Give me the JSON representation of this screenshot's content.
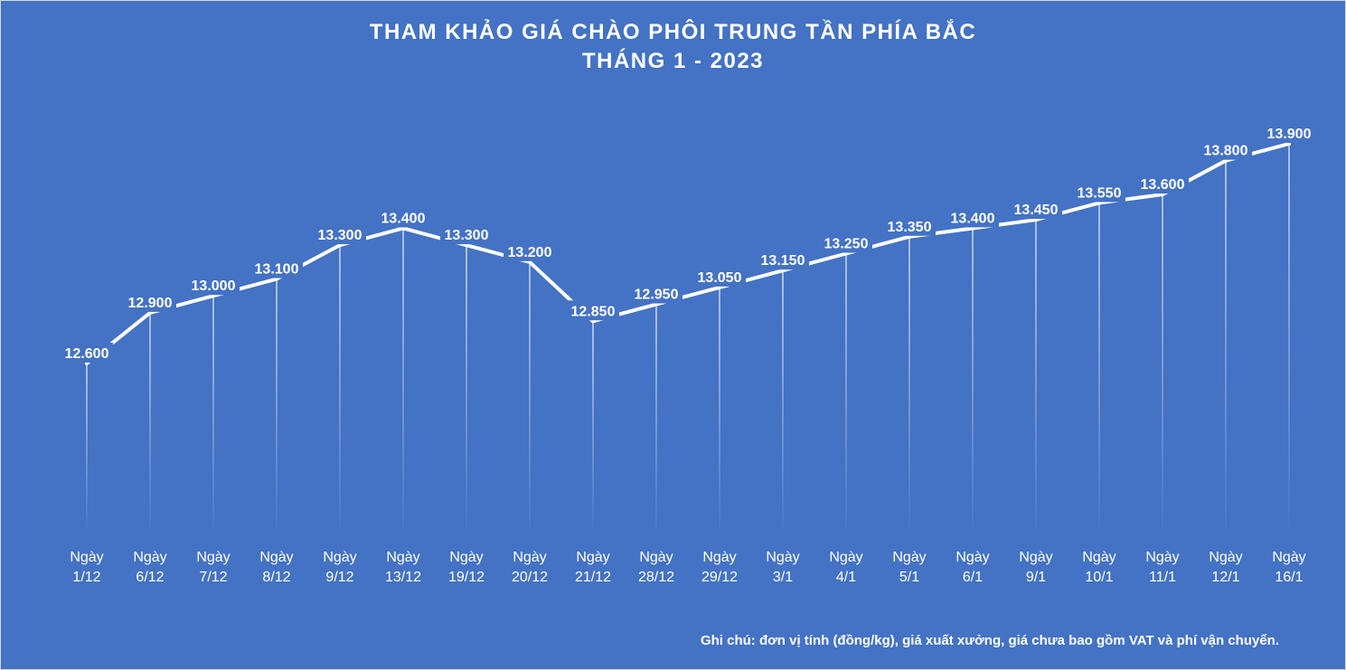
{
  "chart_data": {
    "type": "line",
    "title": "THAM KHẢO GIÁ CHÀO PHÔI TRUNG TẦN PHÍA BẮC",
    "subtitle": "THÁNG 1 - 2023",
    "categories": [
      [
        "Ngày",
        "1/12"
      ],
      [
        "Ngày",
        "6/12"
      ],
      [
        "Ngày",
        "7/12"
      ],
      [
        "Ngày",
        "8/12"
      ],
      [
        "Ngày",
        "9/12"
      ],
      [
        "Ngày",
        "13/12"
      ],
      [
        "Ngày",
        "19/12"
      ],
      [
        "Ngày",
        "20/12"
      ],
      [
        "Ngày",
        "21/12"
      ],
      [
        "Ngày",
        "28/12"
      ],
      [
        "Ngày",
        "29/12"
      ],
      [
        "Ngày",
        "3/1"
      ],
      [
        "Ngày",
        "4/1"
      ],
      [
        "Ngày",
        "5/1"
      ],
      [
        "Ngày",
        "6/1"
      ],
      [
        "Ngày",
        "9/1"
      ],
      [
        "Ngày",
        "10/1"
      ],
      [
        "Ngày",
        "11/1"
      ],
      [
        "Ngày",
        "12/1"
      ],
      [
        "Ngày",
        "16/1"
      ]
    ],
    "values": [
      12600,
      12900,
      13000,
      13100,
      13300,
      13400,
      13300,
      13200,
      12850,
      12950,
      13050,
      13150,
      13250,
      13350,
      13400,
      13450,
      13550,
      13600,
      13800,
      13900
    ],
    "value_labels": [
      "12.600",
      "12.900",
      "13.000",
      "13.100",
      "13.300",
      "13.400",
      "13.300",
      "13.200",
      "12.850",
      "12.950",
      "13.050",
      "13.150",
      "13.250",
      "13.350",
      "13.400",
      "13.450",
      "13.550",
      "13.600",
      "13.800",
      "13.900"
    ],
    "ylim": [
      11000,
      14000
    ],
    "grid": false,
    "drop_lines": true,
    "colors": {
      "background": "#4472C4",
      "line": "#FFFFFF",
      "text": "#FFFFFF"
    }
  },
  "note": "Ghi chú: đơn vị tính (đồng/kg), giá xuất xưởng, giá chưa bao gồm VAT và phí vận chuyển."
}
